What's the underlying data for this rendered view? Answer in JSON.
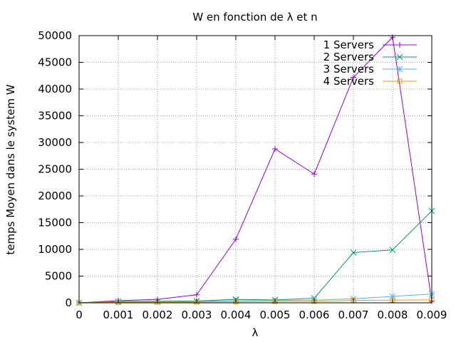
{
  "chart_data": {
    "type": "line",
    "title": "W en fonction de λ et n",
    "xlabel": "λ",
    "ylabel": "temps Moyen dans le system W",
    "xlim": [
      0,
      0.009
    ],
    "ylim": [
      0,
      50000
    ],
    "x_ticks": [
      "0",
      "0.001",
      "0.002",
      "0.003",
      "0.004",
      "0.005",
      "0.006",
      "0.007",
      "0.008",
      "0.009"
    ],
    "y_ticks": [
      "0",
      "5000",
      "10000",
      "15000",
      "20000",
      "25000",
      "30000",
      "35000",
      "40000",
      "45000",
      "50000"
    ],
    "grid": true,
    "legend_position": "top-right",
    "x": [
      0,
      0.001,
      0.002,
      0.003,
      0.004,
      0.005,
      0.006,
      0.007,
      0.008,
      0.009
    ],
    "series": [
      {
        "name": "1 Servers",
        "color": "#9400d3",
        "marker": "plus",
        "values": [
          0,
          400,
          650,
          1500,
          11900,
          28800,
          24100,
          42200,
          49700,
          300
        ]
      },
      {
        "name": "2 Servers",
        "color": "#009e73",
        "marker": "cross",
        "values": [
          0,
          250,
          300,
          350,
          650,
          550,
          850,
          9400,
          9900,
          17200
        ]
      },
      {
        "name": "3 Servers",
        "color": "#56b4e9",
        "marker": "star",
        "values": [
          0,
          150,
          200,
          250,
          450,
          450,
          500,
          750,
          1200,
          1650
        ]
      },
      {
        "name": "4 Servers",
        "color": "#e69f00",
        "marker": "box",
        "values": [
          0,
          100,
          120,
          150,
          200,
          250,
          280,
          450,
          500,
          550
        ]
      }
    ]
  }
}
